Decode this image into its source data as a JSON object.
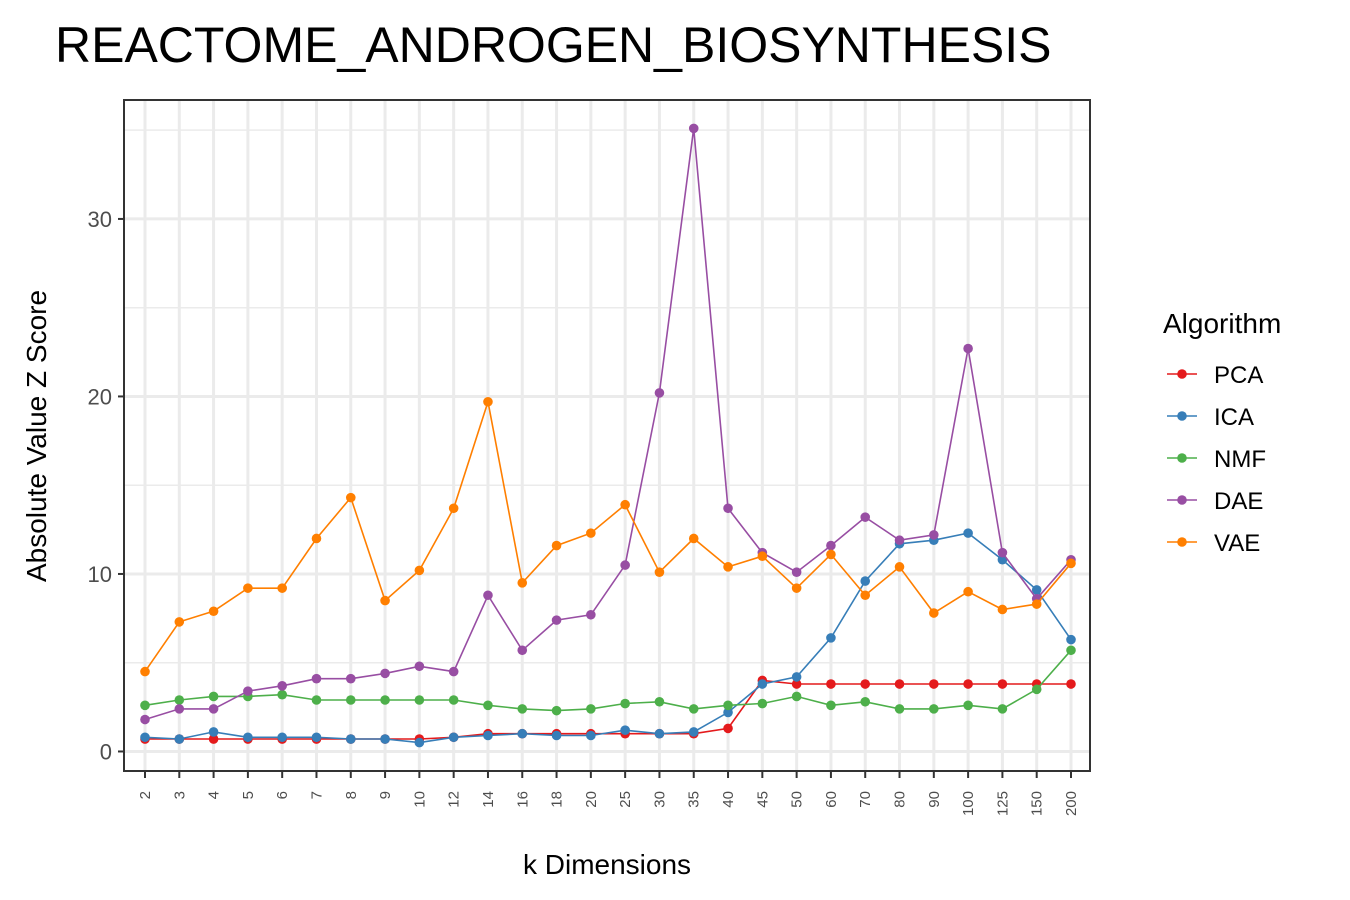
{
  "chart_data": {
    "type": "line",
    "title": "REACTOME_ANDROGEN_BIOSYNTHESIS",
    "xlabel": "k Dimensions",
    "ylabel": "Absolute Value Z Score",
    "categories": [
      "2",
      "3",
      "4",
      "5",
      "6",
      "7",
      "8",
      "9",
      "10",
      "12",
      "14",
      "16",
      "18",
      "20",
      "25",
      "30",
      "35",
      "40",
      "45",
      "50",
      "60",
      "70",
      "80",
      "90",
      "100",
      "125",
      "150",
      "200"
    ],
    "y_ticks": [
      0,
      10,
      20,
      30
    ],
    "ylim": [
      -1.1,
      36.7
    ],
    "grid": true,
    "legend": {
      "title": "Algorithm",
      "position": "right"
    },
    "series": [
      {
        "name": "PCA",
        "color": "#e41a1c",
        "values": [
          0.7,
          0.7,
          0.7,
          0.7,
          0.7,
          0.7,
          0.7,
          0.7,
          0.7,
          0.8,
          1.0,
          1.0,
          1.0,
          1.0,
          1.0,
          1.0,
          1.0,
          1.3,
          4.0,
          3.8,
          3.8,
          3.8,
          3.8,
          3.8,
          3.8,
          3.8,
          3.8,
          3.8
        ]
      },
      {
        "name": "ICA",
        "color": "#377eb8",
        "values": [
          0.8,
          0.7,
          1.1,
          0.8,
          0.8,
          0.8,
          0.7,
          0.7,
          0.5,
          0.8,
          0.9,
          1.0,
          0.9,
          0.9,
          1.2,
          1.0,
          1.1,
          2.2,
          3.8,
          4.2,
          6.4,
          9.6,
          11.7,
          11.9,
          12.3,
          10.8,
          9.1,
          6.3
        ]
      },
      {
        "name": "NMF",
        "color": "#4daf4a",
        "values": [
          2.6,
          2.9,
          3.1,
          3.1,
          3.2,
          2.9,
          2.9,
          2.9,
          2.9,
          2.9,
          2.6,
          2.4,
          2.3,
          2.4,
          2.7,
          2.8,
          2.4,
          2.6,
          2.7,
          3.1,
          2.6,
          2.8,
          2.4,
          2.4,
          2.6,
          2.4,
          3.5,
          5.7
        ]
      },
      {
        "name": "DAE",
        "color": "#984ea3",
        "values": [
          1.8,
          2.4,
          2.4,
          3.4,
          3.7,
          4.1,
          4.1,
          4.4,
          4.8,
          4.5,
          8.8,
          5.7,
          7.4,
          7.7,
          10.5,
          20.2,
          35.1,
          13.7,
          11.2,
          10.1,
          11.6,
          13.2,
          11.9,
          12.2,
          22.7,
          11.2,
          8.6,
          10.8
        ]
      },
      {
        "name": "VAE",
        "color": "#ff7f00",
        "values": [
          4.5,
          7.3,
          7.9,
          9.2,
          9.2,
          12.0,
          14.3,
          8.5,
          10.2,
          13.7,
          19.7,
          9.5,
          11.6,
          12.3,
          13.9,
          10.1,
          12.0,
          10.4,
          11.0,
          9.2,
          11.1,
          8.8,
          10.4,
          7.8,
          9.0,
          8.0,
          8.3,
          10.6
        ]
      }
    ]
  }
}
